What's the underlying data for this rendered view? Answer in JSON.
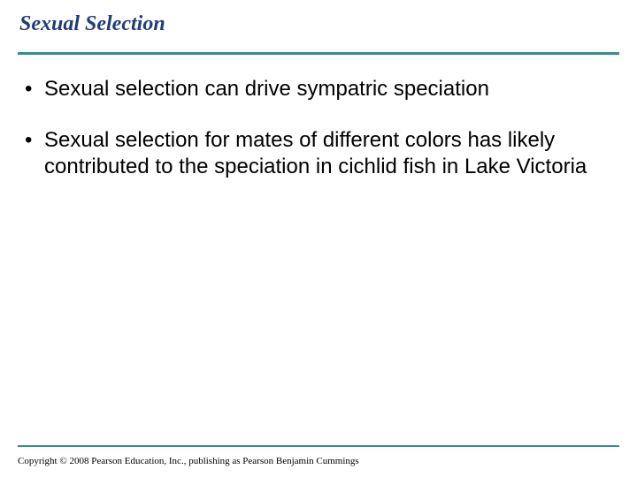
{
  "title": "Sexual Selection",
  "title_color": "#1f3d7a",
  "divider_color": "#2f8f8f",
  "bullets": [
    "Sexual selection can drive sympatric speciation",
    "Sexual selection for mates of different colors has likely contributed to the speciation in cichlid fish in Lake Victoria"
  ],
  "bullet_marker": "•",
  "footer": "Copyright © 2008 Pearson Education, Inc., publishing as Pearson Benjamin Cummings",
  "body_fontsize": 24,
  "title_fontsize": 24,
  "footer_fontsize": 11,
  "background_color": "#ffffff"
}
